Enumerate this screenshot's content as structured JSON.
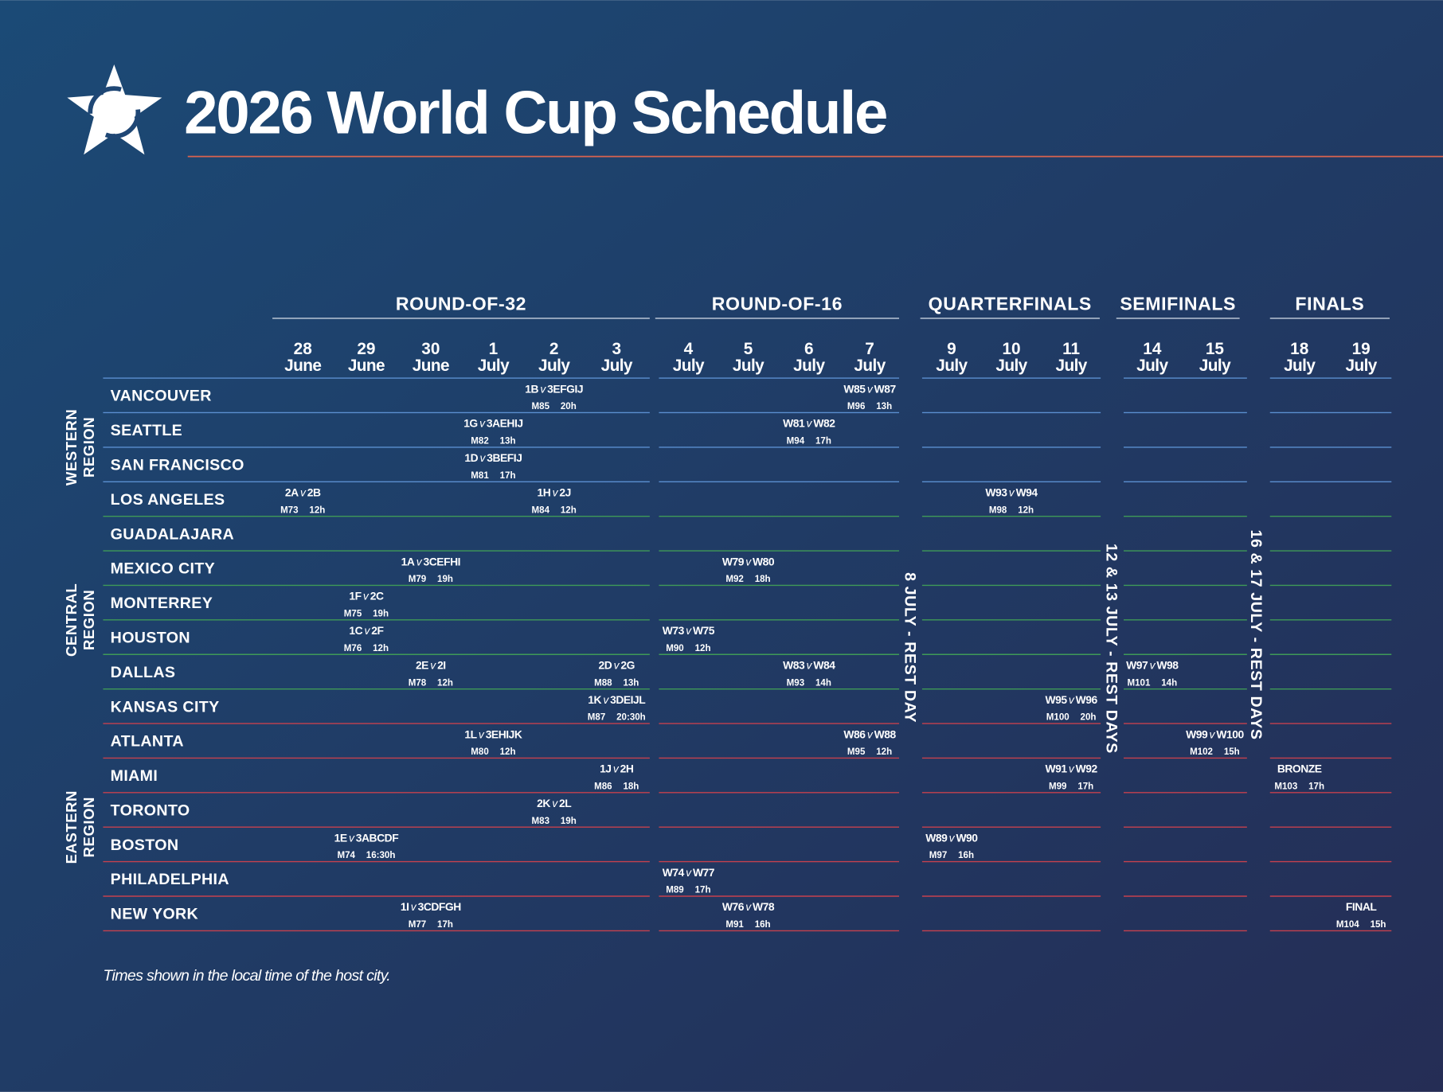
{
  "header": {
    "title": "2026 World Cup Schedule"
  },
  "versus": "v",
  "rounds": [
    {
      "name": "ROUND-OF-32",
      "days": [
        {
          "day": "28",
          "month": "June"
        },
        {
          "day": "29",
          "month": "June"
        },
        {
          "day": "30",
          "month": "June"
        },
        {
          "day": "1",
          "month": "July"
        },
        {
          "day": "2",
          "month": "July"
        },
        {
          "day": "3",
          "month": "July"
        }
      ]
    },
    {
      "name": "ROUND-OF-16",
      "days": [
        {
          "day": "4",
          "month": "July"
        },
        {
          "day": "5",
          "month": "July"
        },
        {
          "day": "6",
          "month": "July"
        },
        {
          "day": "7",
          "month": "July"
        }
      ]
    },
    {
      "name": "QUARTERFINALS",
      "days": [
        {
          "day": "9",
          "month": "July"
        },
        {
          "day": "10",
          "month": "July"
        },
        {
          "day": "11",
          "month": "July"
        }
      ]
    },
    {
      "name": "SEMIFINALS",
      "days": [
        {
          "day": "14",
          "month": "July"
        },
        {
          "day": "15",
          "month": "July"
        }
      ]
    },
    {
      "name": "FINALS",
      "days": [
        {
          "day": "18",
          "month": "July"
        },
        {
          "day": "19",
          "month": "July"
        }
      ]
    }
  ],
  "rest_days": [
    "8 JULY - REST DAY",
    "12 & 13 JULY - REST DAYS",
    "16 & 17 JULY - REST DAYS"
  ],
  "regions": [
    {
      "lines": [
        "WESTERN",
        "REGION"
      ],
      "cities": [
        {
          "name": "VANCOUVER",
          "cells": [
            null,
            null,
            null,
            null,
            {
              "teams": [
                "1B",
                "3EFGIJ"
              ],
              "match": "M85",
              "time": "20h"
            },
            null,
            null,
            null,
            null,
            {
              "teams": [
                "W85",
                "W87"
              ],
              "match": "M96",
              "time": "13h"
            },
            null,
            null,
            null,
            null,
            null,
            null,
            null
          ]
        },
        {
          "name": "SEATTLE",
          "cells": [
            null,
            null,
            null,
            {
              "teams": [
                "1G",
                "3AEHIJ"
              ],
              "match": "M82",
              "time": "13h"
            },
            null,
            null,
            null,
            null,
            {
              "teams": [
                "W81",
                "W82"
              ],
              "match": "M94",
              "time": "17h"
            },
            null,
            null,
            null,
            null,
            null,
            null,
            null,
            null
          ]
        },
        {
          "name": "SAN FRANCISCO",
          "cells": [
            null,
            null,
            null,
            {
              "teams": [
                "1D",
                "3BEFIJ"
              ],
              "match": "M81",
              "time": "17h"
            },
            null,
            null,
            null,
            null,
            null,
            null,
            null,
            null,
            null,
            null,
            null,
            null,
            null
          ]
        },
        {
          "name": "LOS ANGELES",
          "cells": [
            {
              "teams": [
                "2A",
                "2B"
              ],
              "match": "M73",
              "time": "12h"
            },
            null,
            null,
            null,
            {
              "teams": [
                "1H",
                "2J"
              ],
              "match": "M84",
              "time": "12h"
            },
            null,
            null,
            null,
            null,
            null,
            null,
            {
              "teams": [
                "W93",
                "W94"
              ],
              "match": "M98",
              "time": "12h"
            },
            null,
            null,
            null,
            null,
            null
          ]
        }
      ]
    },
    {
      "lines": [
        "CENTRAL",
        "REGION"
      ],
      "cities": [
        {
          "name": "GUADALAJARA",
          "cells": [
            null,
            null,
            null,
            null,
            null,
            null,
            null,
            null,
            null,
            null,
            null,
            null,
            null,
            null,
            null,
            null,
            null
          ]
        },
        {
          "name": "MEXICO CITY",
          "cells": [
            null,
            null,
            {
              "teams": [
                "1A",
                "3CEFHI"
              ],
              "match": "M79",
              "time": "19h"
            },
            null,
            null,
            null,
            null,
            {
              "teams": [
                "W79",
                "W80"
              ],
              "match": "M92",
              "time": "18h"
            },
            null,
            null,
            null,
            null,
            null,
            null,
            null,
            null,
            null
          ]
        },
        {
          "name": "MONTERREY",
          "cells": [
            null,
            {
              "teams": [
                "1F",
                "2C"
              ],
              "match": "M75",
              "time": "19h"
            },
            null,
            null,
            null,
            null,
            null,
            null,
            null,
            null,
            null,
            null,
            null,
            null,
            null,
            null,
            null
          ]
        },
        {
          "name": "HOUSTON",
          "cells": [
            null,
            {
              "teams": [
                "1C",
                "2F"
              ],
              "match": "M76",
              "time": "12h"
            },
            null,
            null,
            null,
            null,
            {
              "teams": [
                "W73",
                "W75"
              ],
              "match": "M90",
              "time": "12h"
            },
            null,
            null,
            null,
            null,
            null,
            null,
            null,
            null,
            null,
            null
          ]
        },
        {
          "name": "DALLAS",
          "cells": [
            null,
            null,
            {
              "teams": [
                "2E",
                "2I"
              ],
              "match": "M78",
              "time": "12h"
            },
            null,
            null,
            {
              "teams": [
                "2D",
                "2G"
              ],
              "match": "M88",
              "time": "13h"
            },
            null,
            null,
            {
              "teams": [
                "W83",
                "W84"
              ],
              "match": "M93",
              "time": "14h"
            },
            null,
            null,
            null,
            null,
            {
              "teams": [
                "W97",
                "W98"
              ],
              "match": "M101",
              "time": "14h"
            },
            null,
            null,
            null
          ]
        },
        {
          "name": "KANSAS CITY",
          "cells": [
            null,
            null,
            null,
            null,
            null,
            {
              "teams": [
                "1K",
                "3DEIJL"
              ],
              "match": "M87",
              "time": "20:30h"
            },
            null,
            null,
            null,
            null,
            null,
            null,
            {
              "teams": [
                "W95",
                "W96"
              ],
              "match": "M100",
              "time": "20h"
            },
            null,
            null,
            null,
            null
          ]
        }
      ]
    },
    {
      "lines": [
        "EASTERN",
        "REGION"
      ],
      "cities": [
        {
          "name": "ATLANTA",
          "cells": [
            null,
            null,
            null,
            {
              "teams": [
                "1L",
                "3EHIJK"
              ],
              "match": "M80",
              "time": "12h"
            },
            null,
            null,
            null,
            null,
            null,
            {
              "teams": [
                "W86",
                "W88"
              ],
              "match": "M95",
              "time": "12h"
            },
            null,
            null,
            null,
            null,
            {
              "teams": [
                "W99",
                "W100"
              ],
              "match": "M102",
              "time": "15h"
            },
            null,
            null
          ]
        },
        {
          "name": "MIAMI",
          "cells": [
            null,
            null,
            null,
            null,
            null,
            {
              "teams": [
                "1J",
                "2H"
              ],
              "match": "M86",
              "time": "18h"
            },
            null,
            null,
            null,
            null,
            null,
            null,
            {
              "teams": [
                "W91",
                "W92"
              ],
              "match": "M99",
              "time": "17h"
            },
            null,
            null,
            {
              "label": "BRONZE",
              "match": "M103",
              "time": "17h"
            },
            null
          ]
        },
        {
          "name": "TORONTO",
          "cells": [
            null,
            null,
            null,
            null,
            {
              "teams": [
                "2K",
                "2L"
              ],
              "match": "M83",
              "time": "19h"
            },
            null,
            null,
            null,
            null,
            null,
            null,
            null,
            null,
            null,
            null,
            null,
            null
          ]
        },
        {
          "name": "BOSTON",
          "cells": [
            null,
            {
              "teams": [
                "1E",
                "3ABCDF"
              ],
              "match": "M74",
              "time": "16:30h"
            },
            null,
            null,
            null,
            null,
            null,
            null,
            null,
            null,
            {
              "teams": [
                "W89",
                "W90"
              ],
              "match": "M97",
              "time": "16h"
            },
            null,
            null,
            null,
            null,
            null,
            null
          ]
        },
        {
          "name": "PHILADELPHIA",
          "cells": [
            null,
            null,
            null,
            null,
            null,
            null,
            {
              "teams": [
                "W74",
                "W77"
              ],
              "match": "M89",
              "time": "17h"
            },
            null,
            null,
            null,
            null,
            null,
            null,
            null,
            null,
            null,
            null
          ]
        },
        {
          "name": "NEW YORK",
          "cells": [
            null,
            null,
            {
              "teams": [
                "1I",
                "3CDFGH"
              ],
              "match": "M77",
              "time": "17h"
            },
            null,
            null,
            null,
            null,
            {
              "teams": [
                "W76",
                "W78"
              ],
              "match": "M91",
              "time": "16h"
            },
            null,
            null,
            null,
            null,
            null,
            null,
            null,
            null,
            {
              "label": "FINAL",
              "match": "M104",
              "time": "15h"
            }
          ]
        }
      ]
    }
  ],
  "footnote": "Times shown in the local time of the host city."
}
